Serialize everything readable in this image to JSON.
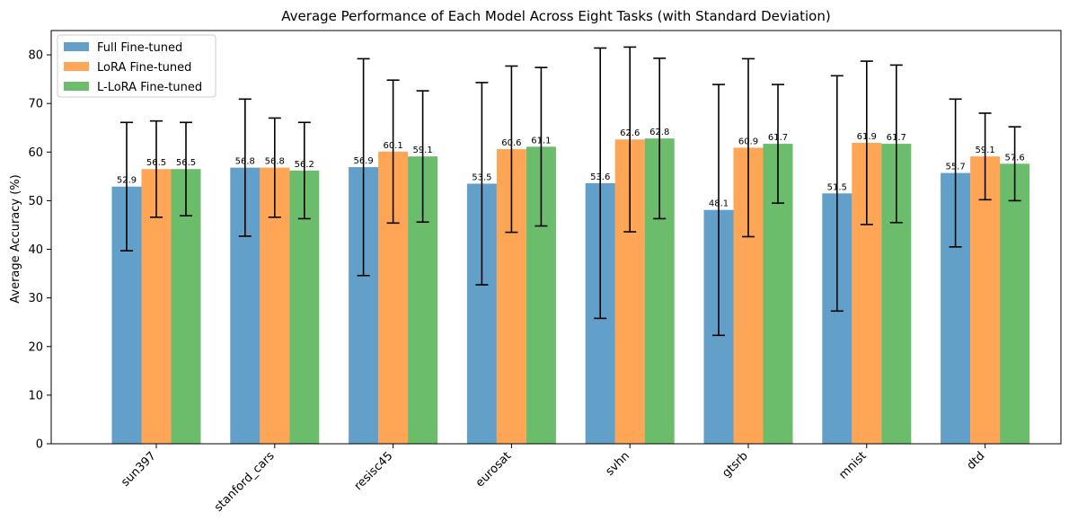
{
  "chart_data": {
    "type": "bar",
    "title": "Average Performance of Each Model Across Eight Tasks (with Standard Deviation)",
    "xlabel": "",
    "ylabel": "Average Accuracy (%)",
    "ylim": [
      0,
      85
    ],
    "yticks": [
      0,
      10,
      20,
      30,
      40,
      50,
      60,
      70,
      80
    ],
    "grid": false,
    "legend_position": "top-left",
    "categories": [
      "sun397",
      "stanford_cars",
      "resisc45",
      "eurosat",
      "svhn",
      "gtsrb",
      "mnist",
      "dtd"
    ],
    "series": [
      {
        "name": "Full Fine-tuned",
        "color": "#1f77b4",
        "values": [
          52.9,
          56.8,
          56.9,
          53.5,
          53.6,
          48.1,
          51.5,
          55.7
        ],
        "labels": [
          "52.9",
          "56.8",
          "56.9",
          "53.5",
          "53.6",
          "48.1",
          "51.5",
          "55.7"
        ],
        "std": [
          13.2,
          14.1,
          22.3,
          20.8,
          27.8,
          25.8,
          24.2,
          15.2
        ]
      },
      {
        "name": "LoRA Fine-tuned",
        "color": "#ff7f0e",
        "values": [
          56.5,
          56.8,
          60.1,
          60.6,
          62.6,
          60.9,
          61.9,
          59.1
        ],
        "labels": [
          "56.5",
          "56.8",
          "60.1",
          "60.6",
          "62.6",
          "60.9",
          "61.9",
          "59.1"
        ],
        "std": [
          9.9,
          10.2,
          14.7,
          17.1,
          19.0,
          18.3,
          16.8,
          8.9
        ]
      },
      {
        "name": "L-LoRA Fine-tuned",
        "color": "#2ca02c",
        "values": [
          56.5,
          56.2,
          59.1,
          61.1,
          62.8,
          61.7,
          61.7,
          57.6
        ],
        "labels": [
          "56.5",
          "56.2",
          "59.1",
          "61.1",
          "62.8",
          "61.7",
          "61.7",
          "57.6"
        ],
        "std": [
          9.6,
          9.9,
          13.5,
          16.3,
          16.5,
          12.2,
          16.2,
          7.6
        ]
      }
    ]
  }
}
